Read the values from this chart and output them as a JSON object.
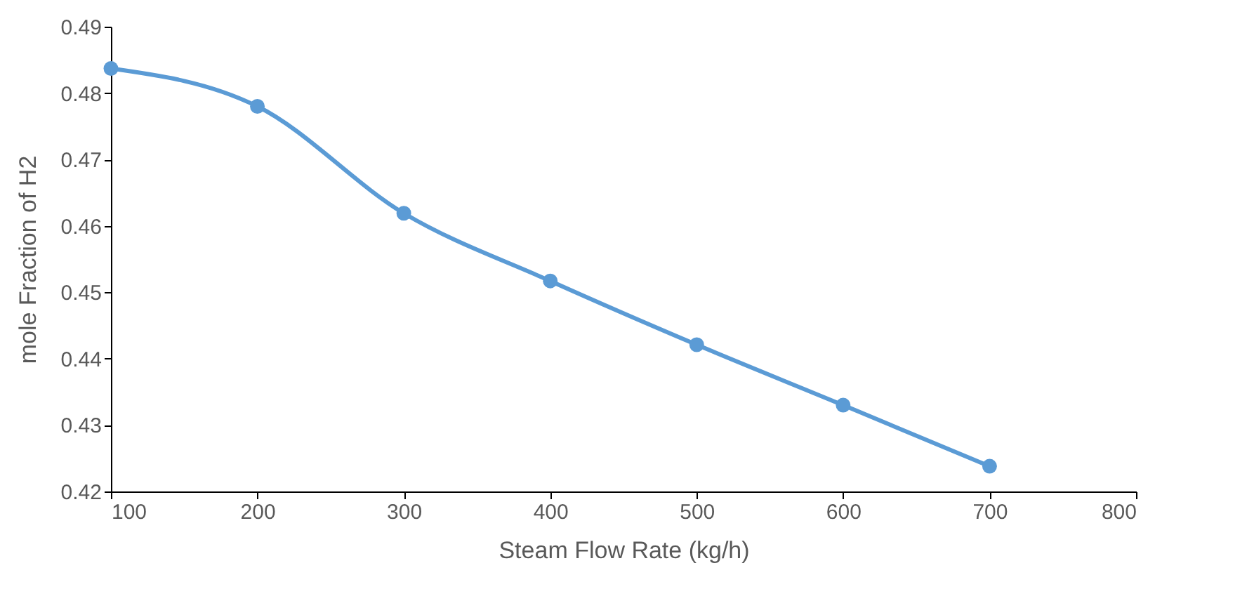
{
  "chart_data": {
    "type": "line",
    "xlabel": "Steam Flow Rate (kg/h)",
    "ylabel": "mole Fraction of H2",
    "x": [
      100,
      200,
      300,
      400,
      500,
      600,
      700
    ],
    "series": [
      {
        "color": "#5b9bd5",
        "values": [
          0.4837,
          0.478,
          0.4619,
          0.4517,
          0.4421,
          0.433,
          0.4238
        ]
      }
    ],
    "xlim": [
      100,
      800
    ],
    "xticks": [
      100,
      200,
      300,
      400,
      500,
      600,
      700,
      800
    ],
    "ylim": [
      0.42,
      0.49
    ],
    "yticks": [
      0.42,
      0.43,
      0.44,
      0.45,
      0.46,
      0.47,
      0.48,
      0.49
    ],
    "grid": false,
    "marker": "circle",
    "line_style": "solid"
  }
}
